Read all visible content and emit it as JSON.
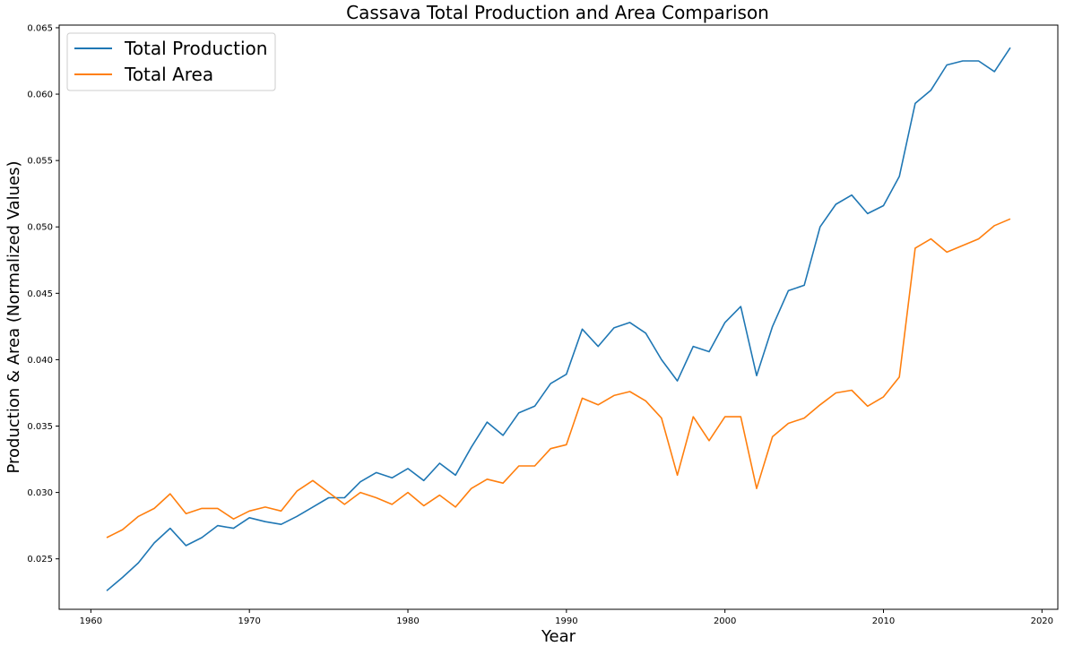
{
  "chart_data": {
    "type": "line",
    "title": "Cassava Total Production and Area Comparison",
    "xlabel": "Year",
    "ylabel": "Production & Area (Normalized Values)",
    "xlim": [
      1958,
      2021
    ],
    "ylim": [
      0.0212,
      0.0652
    ],
    "x_ticks": [
      1960,
      1970,
      1980,
      1990,
      2000,
      2010,
      2020
    ],
    "y_ticks": [
      0.025,
      0.03,
      0.035,
      0.04,
      0.045,
      0.05,
      0.055,
      0.06,
      0.065
    ],
    "y_tick_labels": [
      "0.025",
      "0.030",
      "0.035",
      "0.040",
      "0.045",
      "0.050",
      "0.055",
      "0.060",
      "0.065"
    ],
    "grid": false,
    "legend_position": "top-left",
    "x": [
      1961,
      1962,
      1963,
      1964,
      1965,
      1966,
      1967,
      1968,
      1969,
      1970,
      1971,
      1972,
      1973,
      1974,
      1975,
      1976,
      1977,
      1978,
      1979,
      1980,
      1981,
      1982,
      1983,
      1984,
      1985,
      1986,
      1987,
      1988,
      1989,
      1990,
      1991,
      1992,
      1993,
      1994,
      1995,
      1996,
      1997,
      1998,
      1999,
      2000,
      2001,
      2002,
      2003,
      2004,
      2005,
      2006,
      2007,
      2008,
      2009,
      2010,
      2011,
      2012,
      2013,
      2014,
      2015,
      2016,
      2017,
      2018
    ],
    "series": [
      {
        "name": "Total Production",
        "color": "#1f77b4",
        "values": [
          0.0226,
          0.0236,
          0.0247,
          0.0262,
          0.0273,
          0.026,
          0.0266,
          0.0275,
          0.0273,
          0.0281,
          0.0278,
          0.0276,
          0.0282,
          0.0289,
          0.0296,
          0.0296,
          0.0308,
          0.0315,
          0.0311,
          0.0318,
          0.0309,
          0.0322,
          0.0313,
          0.0334,
          0.0353,
          0.0343,
          0.036,
          0.0365,
          0.0382,
          0.0389,
          0.0423,
          0.041,
          0.0424,
          0.0428,
          0.042,
          0.04,
          0.0384,
          0.041,
          0.0406,
          0.0428,
          0.044,
          0.0388,
          0.0425,
          0.0452,
          0.0456,
          0.05,
          0.0517,
          0.0524,
          0.051,
          0.0516,
          0.0538,
          0.0593,
          0.0603,
          0.0622,
          0.0625,
          0.0625,
          0.0617,
          0.0635
        ]
      },
      {
        "name": "Total Area",
        "color": "#ff7f0e",
        "values": [
          0.0266,
          0.0272,
          0.0282,
          0.0288,
          0.0299,
          0.0284,
          0.0288,
          0.0288,
          0.028,
          0.0286,
          0.0289,
          0.0286,
          0.0301,
          0.0309,
          0.03,
          0.0291,
          0.03,
          0.0296,
          0.0291,
          0.03,
          0.029,
          0.0298,
          0.0289,
          0.0303,
          0.031,
          0.0307,
          0.032,
          0.032,
          0.0333,
          0.0336,
          0.0371,
          0.0366,
          0.0373,
          0.0376,
          0.0369,
          0.0356,
          0.0313,
          0.0357,
          0.0339,
          0.0357,
          0.0357,
          0.0303,
          0.0342,
          0.0352,
          0.0356,
          0.0366,
          0.0375,
          0.0377,
          0.0365,
          0.0372,
          0.0387,
          0.0484,
          0.0491,
          0.0481,
          0.0486,
          0.0491,
          0.0501,
          0.0506
        ]
      }
    ]
  }
}
